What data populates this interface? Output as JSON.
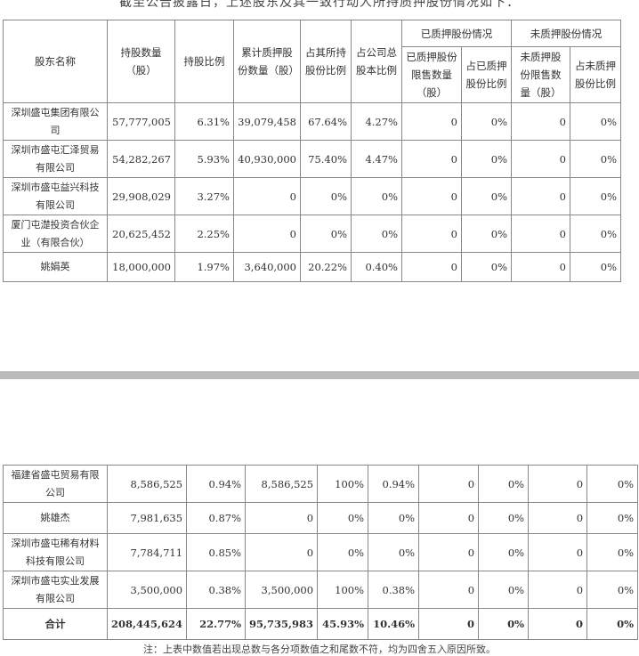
{
  "title": "截至公告披露日，上述股东及其一致行动人所持质押股份情况如下：",
  "headers": {
    "name": "股东名称",
    "shares": "持股数量（股）",
    "ratio": "持股比例",
    "pledged": "累计质押股份数量（股）",
    "pct_own": "占其所持股份比例",
    "pct_total": "占公司总股本比例",
    "pledged_group": "已质押股份情况",
    "pledged_restricted": "已质押股份限售数量（股）",
    "pledged_pct": "占已质押股份比例",
    "unpledged_group": "未质押股份情况",
    "unpledged_restricted": "未质押股份限售数量（股）",
    "unpledged_pct": "占未质押股份比例"
  },
  "rows_top": [
    [
      "深圳盛屯集团有限公司",
      "57,777,005",
      "6.31%",
      "39,079,458",
      "67.64%",
      "4.27%",
      "0",
      "0%",
      "0",
      "0%"
    ],
    [
      "深圳市盛屯汇泽贸易有限公司",
      "54,282,267",
      "5.93%",
      "40,930,000",
      "75.40%",
      "4.47%",
      "0",
      "0%",
      "0",
      "0%"
    ],
    [
      "深圳市盛屯益兴科技有限公司",
      "29,908,029",
      "3.27%",
      "0",
      "0%",
      "0%",
      "0",
      "0%",
      "0",
      "0%"
    ],
    [
      "厦门屯濋投资合伙企业（有限合伙）",
      "20,625,452",
      "2.25%",
      "0",
      "0%",
      "0%",
      "0",
      "0%",
      "0",
      "0%"
    ],
    [
      "姚娟英",
      "18,000,000",
      "1.97%",
      "3,640,000",
      "20.22%",
      "0.40%",
      "0",
      "0%",
      "0",
      "0%"
    ]
  ],
  "rows_bottom": [
    [
      "福建省盛屯贸易有限公司",
      "8,586,525",
      "0.94%",
      "8,586,525",
      "100%",
      "0.94%",
      "0",
      "0%",
      "0",
      "0%"
    ],
    [
      "姚雄杰",
      "7,981,635",
      "0.87%",
      "0",
      "0%",
      "0%",
      "0",
      "0%",
      "0",
      "0%"
    ],
    [
      "深圳市盛屯稀有材料科技有限公司",
      "7,784,711",
      "0.85%",
      "0",
      "0%",
      "0%",
      "0",
      "0%",
      "0",
      "0%"
    ],
    [
      "深圳市盛屯实业发展有限公司",
      "3,500,000",
      "0.38%",
      "3,500,000",
      "100%",
      "0.38%",
      "0",
      "0%",
      "0",
      "0%"
    ]
  ],
  "total": [
    "合计",
    "208,445,624",
    "22.77%",
    "95,735,983",
    "45.93%",
    "10.46%",
    "0",
    "0%",
    "0",
    "0%"
  ],
  "note": "注：上表中数值若出现总数与各分项数值之和尾数不符，均为四舍五入原因所致。"
}
